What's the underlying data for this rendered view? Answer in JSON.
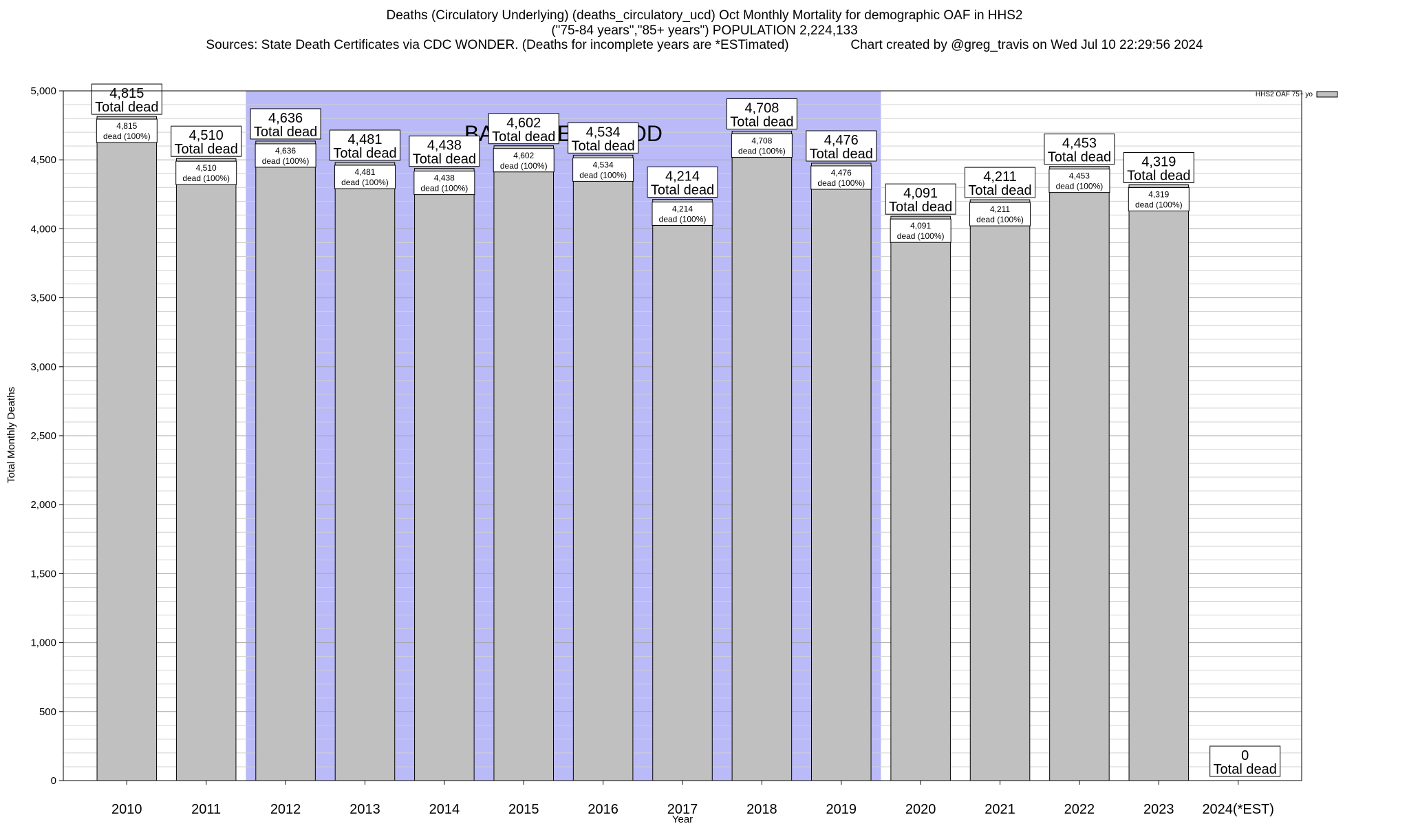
{
  "chart_data": {
    "type": "bar",
    "title_lines": [
      "Deaths (Circulatory Underlying) (deaths_circulatory_ucd) Oct Monthly Mortality for demographic OAF in HHS2",
      "(\"75-84 years\",\"85+ years\") POPULATION 2,224,133",
      "Sources: State Death Certificates via CDC WONDER. (Deaths for incomplete years are *ESTimated)                 Chart created by @greg_travis on Wed Jul 10 22:29:56 2024"
    ],
    "xlabel": "Year",
    "ylabel": "Total Monthly Deaths",
    "ylim": [
      0,
      5000
    ],
    "y_ticks": [
      0,
      500,
      1000,
      1500,
      2000,
      2500,
      3000,
      3500,
      4000,
      4500,
      5000
    ],
    "y_tick_labels": [
      "0",
      "500",
      "1,000",
      "1,500",
      "2,000",
      "2,500",
      "3,000",
      "3,500",
      "4,000",
      "4,500",
      "5,000"
    ],
    "grid": true,
    "legend": {
      "position": "top-right",
      "entries": [
        "HHS2 OAF 75+ yo"
      ]
    },
    "baseline": {
      "label": "BASELINE PERIOD",
      "start": "2012",
      "end": "2019",
      "color": "#babaf8"
    },
    "bar_color": "#c0c0c0",
    "categories": [
      "2010",
      "2011",
      "2012",
      "2013",
      "2014",
      "2015",
      "2016",
      "2017",
      "2018",
      "2019",
      "2020",
      "2021",
      "2022",
      "2023",
      "2024(*EST)"
    ],
    "series": [
      {
        "name": "HHS2 OAF 75+ yo",
        "values": [
          4815,
          4510,
          4636,
          4481,
          4438,
          4602,
          4534,
          4214,
          4708,
          4476,
          4091,
          4211,
          4453,
          4319,
          0
        ]
      }
    ],
    "value_labels": [
      "4,815",
      "4,510",
      "4,636",
      "4,481",
      "4,438",
      "4,602",
      "4,534",
      "4,214",
      "4,708",
      "4,476",
      "4,091",
      "4,211",
      "4,453",
      "4,319",
      "0"
    ],
    "total_label": "Total dead",
    "inner_labels": [
      "dead (100%)",
      "dead (100%)",
      "dead (100%)",
      "dead (100%)",
      "dead (100%)",
      "dead (100%)",
      "dead (100%)",
      "dead (100%)",
      "dead (100%)",
      "dead (100%)",
      "dead (100%)",
      "dead (100%)",
      "dead (100%)",
      "dead (100%)",
      ""
    ]
  }
}
